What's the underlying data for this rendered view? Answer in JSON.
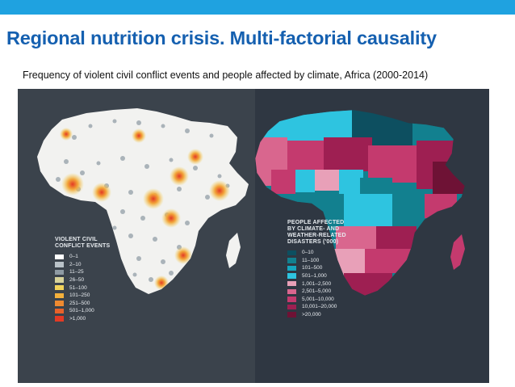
{
  "header": {
    "title": "Regional nutrition crisis. Multi-factorial causality",
    "subtitle": "Frequency of violent civil conflict events and people affected by climate, Africa (2000-2014)",
    "accent_color": "#1fa2e0",
    "title_color": "#1560b0"
  },
  "left_map": {
    "map_colors": {
      "background": "#3b434c",
      "land": "#f2f2f0",
      "dots": "#9ea8b0",
      "hotspot": "#f0a030"
    },
    "legend": {
      "title_lines": [
        "VIOLENT CIVIL",
        "CONFLICT EVENTS"
      ],
      "items": [
        {
          "label": "0–1",
          "color": "#ffffff"
        },
        {
          "label": "2–10",
          "color": "#b9c2c8"
        },
        {
          "label": "11–25",
          "color": "#8e9aa3"
        },
        {
          "label": "26–50",
          "color": "#d8d39a"
        },
        {
          "label": "51–100",
          "color": "#f2d35a"
        },
        {
          "label": "101–250",
          "color": "#f4b13c"
        },
        {
          "label": "251–500",
          "color": "#ef8a30"
        },
        {
          "label": "501–1,000",
          "color": "#e8622a"
        },
        {
          "label": ">1,000",
          "color": "#e33a24"
        }
      ]
    }
  },
  "right_map": {
    "map_colors": {
      "background": "#2f3742"
    },
    "legend": {
      "title_lines": [
        "PEOPLE AFFECTED",
        "BY CLIMATE- AND",
        "WEATHER-RELATED",
        "DISASTERS ('000)"
      ],
      "items": [
        {
          "label": "0–10",
          "color": "#0d4f60"
        },
        {
          "label": "11–100",
          "color": "#12808f"
        },
        {
          "label": "101–500",
          "color": "#16a6bf"
        },
        {
          "label": "501–1,000",
          "color": "#2ec4e0"
        },
        {
          "label": "1,001–2,500",
          "color": "#e8a0b8"
        },
        {
          "label": "2,501–5,000",
          "color": "#d9668e"
        },
        {
          "label": "5,001–10,000",
          "color": "#c43a6e"
        },
        {
          "label": "10,001–20,000",
          "color": "#9e1f52"
        },
        {
          "label": ">20,000",
          "color": "#6e1235"
        }
      ]
    }
  }
}
